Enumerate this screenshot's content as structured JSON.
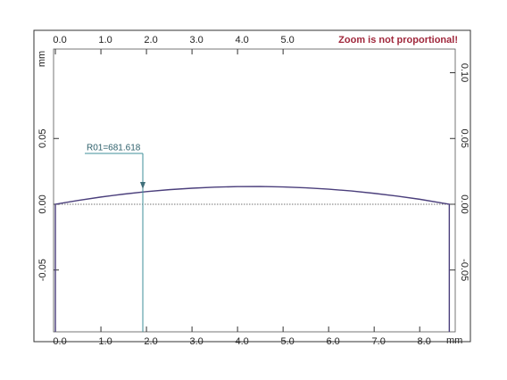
{
  "chart_data": {
    "type": "line",
    "x": [
      0,
      0,
      0.5,
      1,
      1.5,
      2,
      2.5,
      3,
      3.5,
      4,
      4.5,
      5,
      5.5,
      6,
      6.5,
      7,
      7.5,
      8,
      8.5,
      8.65,
      8.65
    ],
    "series": [
      {
        "color": "#4b3f7c",
        "values": [
          -0.097,
          0,
          0.0029,
          0.0055,
          0.0077,
          0.0096,
          0.0111,
          0.0122,
          0.013,
          0.0134,
          0.0135,
          0.0132,
          0.0125,
          0.0115,
          0.0101,
          0.0083,
          0.0062,
          0.0038,
          0.0009,
          0,
          -0.097
        ]
      }
    ],
    "xlim": [
      -0.04,
      8.78
    ],
    "ylim": [
      -0.097,
      0.118
    ],
    "xticks": [
      {
        "value": 0,
        "label": "0.0"
      },
      {
        "value": 1,
        "label": "1.0"
      },
      {
        "value": 2,
        "label": "2.0"
      },
      {
        "value": 3,
        "label": "3.0"
      },
      {
        "value": 4,
        "label": "4.0"
      },
      {
        "value": 5,
        "label": "5.0"
      },
      {
        "value": 6,
        "label": "6.0"
      },
      {
        "value": 7,
        "label": "7.0"
      },
      {
        "value": 8,
        "label": "8.0"
      }
    ],
    "x2ticks": [
      {
        "value": 0,
        "label": "0.0"
      },
      {
        "value": 1,
        "label": "1.0"
      },
      {
        "value": 2,
        "label": "2.0"
      },
      {
        "value": 3,
        "label": "3.0"
      },
      {
        "value": 4,
        "label": "4.0"
      },
      {
        "value": 5,
        "label": "5.0"
      }
    ],
    "yticks": [
      -0.05,
      {
        "value": 0,
        "label": "0.00"
      },
      0.05
    ],
    "y2ticks": [
      -0.05,
      {
        "value": 0,
        "label": "0.00"
      },
      0.05,
      {
        "value": 0.1,
        "label": "0.10"
      }
    ],
    "xlabel": "mm",
    "ylabel": "mm",
    "note": "Zoom is not proportional!",
    "annotation": {
      "text": "R01=681.618",
      "x": 1.92
    }
  }
}
